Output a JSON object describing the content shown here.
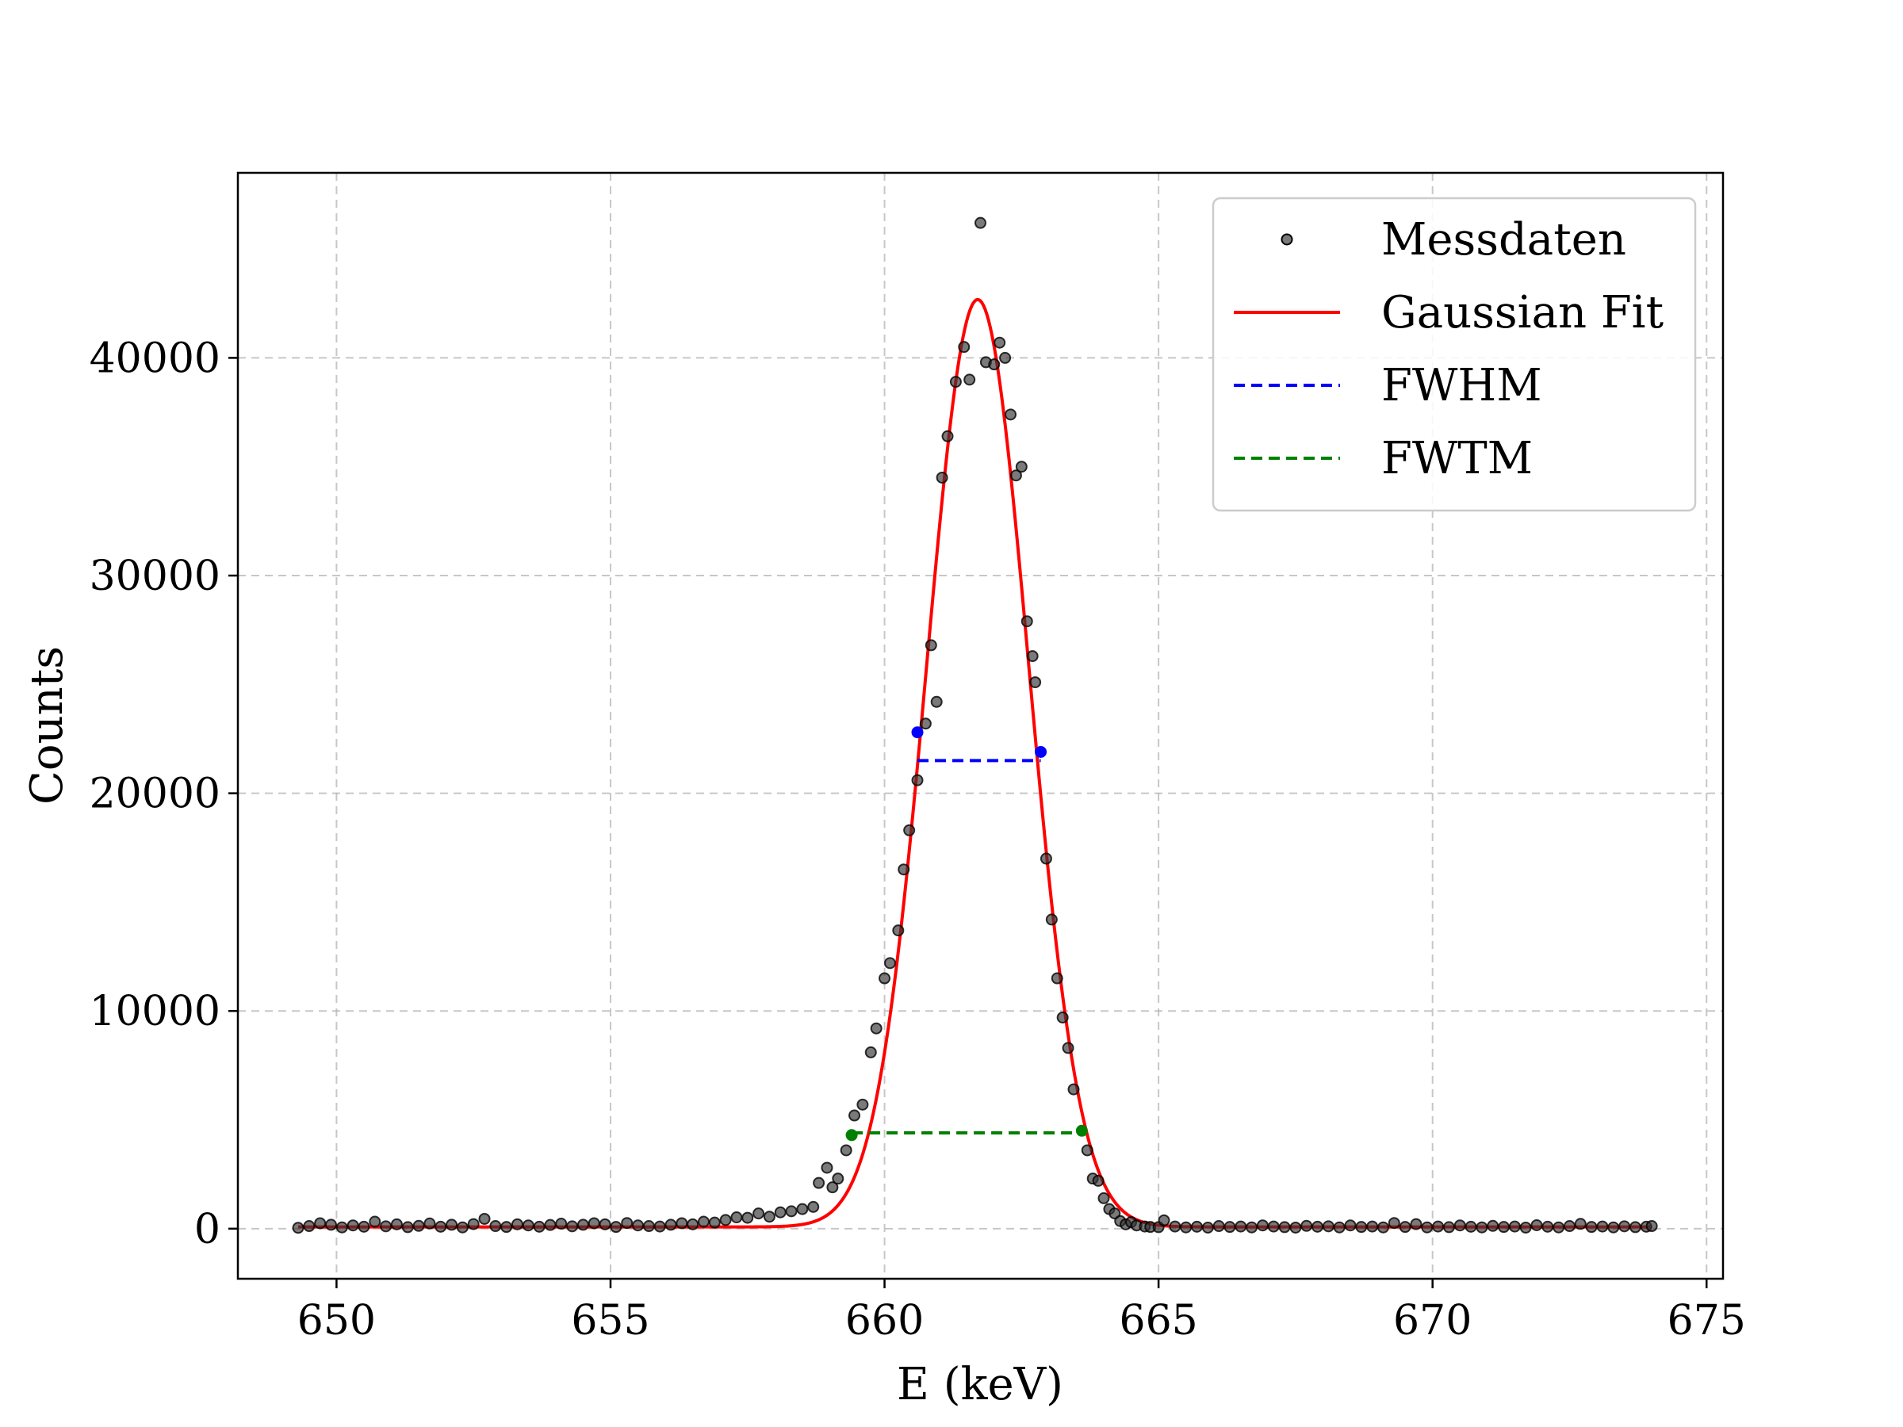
{
  "chart_data": {
    "type": "scatter",
    "title": "",
    "xlabel": "E (keV)",
    "ylabel": "Counts",
    "xlim": [
      648.2,
      675.3
    ],
    "ylim": [
      -2300,
      48500
    ],
    "xticks": [
      650,
      655,
      660,
      665,
      670,
      675
    ],
    "yticks": [
      0,
      10000,
      20000,
      30000,
      40000
    ],
    "grid": true,
    "legend_position": "top-right",
    "legend": [
      {
        "label": "Messdaten",
        "kind": "marker",
        "color": "#000000"
      },
      {
        "label": "Gaussian Fit",
        "kind": "solid",
        "color": "#ff0000"
      },
      {
        "label": "FWHM",
        "kind": "dashed",
        "color": "#0000ff"
      },
      {
        "label": "FWTM",
        "kind": "dashed",
        "color": "#008000"
      }
    ],
    "series": [
      {
        "name": "Messdaten",
        "color": "#000000",
        "points": [
          [
            649.3,
            40
          ],
          [
            649.5,
            120
          ],
          [
            649.7,
            250
          ],
          [
            649.9,
            180
          ],
          [
            650.1,
            60
          ],
          [
            650.3,
            150
          ],
          [
            650.5,
            90
          ],
          [
            650.7,
            320
          ],
          [
            650.9,
            110
          ],
          [
            651.1,
            200
          ],
          [
            651.3,
            70
          ],
          [
            651.5,
            130
          ],
          [
            651.7,
            240
          ],
          [
            651.9,
            90
          ],
          [
            652.1,
            180
          ],
          [
            652.3,
            60
          ],
          [
            652.5,
            210
          ],
          [
            652.7,
            450
          ],
          [
            652.9,
            120
          ],
          [
            653.1,
            80
          ],
          [
            653.3,
            200
          ],
          [
            653.5,
            150
          ],
          [
            653.7,
            90
          ],
          [
            653.9,
            170
          ],
          [
            654.1,
            230
          ],
          [
            654.3,
            110
          ],
          [
            654.5,
            180
          ],
          [
            654.7,
            250
          ],
          [
            654.9,
            200
          ],
          [
            655.1,
            80
          ],
          [
            655.3,
            260
          ],
          [
            655.5,
            150
          ],
          [
            655.7,
            120
          ],
          [
            655.9,
            100
          ],
          [
            656.1,
            180
          ],
          [
            656.3,
            250
          ],
          [
            656.5,
            200
          ],
          [
            656.7,
            320
          ],
          [
            656.9,
            280
          ],
          [
            657.1,
            400
          ],
          [
            657.3,
            520
          ],
          [
            657.5,
            500
          ],
          [
            657.7,
            700
          ],
          [
            657.9,
            550
          ],
          [
            658.1,
            750
          ],
          [
            658.3,
            800
          ],
          [
            658.5,
            900
          ],
          [
            658.7,
            1000
          ],
          [
            658.8,
            2100
          ],
          [
            658.95,
            2800
          ],
          [
            659.05,
            1900
          ],
          [
            659.15,
            2300
          ],
          [
            659.3,
            3600
          ],
          [
            659.45,
            5200
          ],
          [
            659.6,
            5700
          ],
          [
            659.75,
            8100
          ],
          [
            659.85,
            9200
          ],
          [
            660.0,
            11500
          ],
          [
            660.1,
            12200
          ],
          [
            660.25,
            13700
          ],
          [
            660.35,
            16500
          ],
          [
            660.45,
            18300
          ],
          [
            660.6,
            20600
          ],
          [
            660.75,
            23200
          ],
          [
            660.85,
            26800
          ],
          [
            660.95,
            24200
          ],
          [
            661.05,
            34500
          ],
          [
            661.15,
            36400
          ],
          [
            661.3,
            38900
          ],
          [
            661.45,
            40500
          ],
          [
            661.55,
            39000
          ],
          [
            661.75,
            46200
          ],
          [
            661.85,
            39800
          ],
          [
            662.0,
            39700
          ],
          [
            662.1,
            40700
          ],
          [
            662.2,
            40000
          ],
          [
            662.3,
            37400
          ],
          [
            662.4,
            34600
          ],
          [
            662.5,
            35000
          ],
          [
            662.6,
            27900
          ],
          [
            662.7,
            26300
          ],
          [
            662.75,
            25100
          ],
          [
            662.95,
            17000
          ],
          [
            663.05,
            14200
          ],
          [
            663.15,
            11500
          ],
          [
            663.25,
            9700
          ],
          [
            663.35,
            8300
          ],
          [
            663.45,
            6400
          ],
          [
            663.7,
            3600
          ],
          [
            663.8,
            2300
          ],
          [
            663.9,
            2200
          ],
          [
            664.0,
            1400
          ],
          [
            664.1,
            900
          ],
          [
            664.2,
            700
          ],
          [
            664.3,
            350
          ],
          [
            664.4,
            200
          ],
          [
            664.5,
            300
          ],
          [
            664.6,
            150
          ],
          [
            664.75,
            100
          ],
          [
            664.85,
            80
          ],
          [
            665.0,
            70
          ],
          [
            665.1,
            380
          ],
          [
            665.3,
            100
          ],
          [
            665.5,
            60
          ],
          [
            665.7,
            90
          ],
          [
            665.9,
            50
          ],
          [
            666.1,
            120
          ],
          [
            666.3,
            80
          ],
          [
            666.5,
            100
          ],
          [
            666.7,
            60
          ],
          [
            666.9,
            150
          ],
          [
            667.1,
            100
          ],
          [
            667.3,
            70
          ],
          [
            667.5,
            50
          ],
          [
            667.7,
            130
          ],
          [
            667.9,
            90
          ],
          [
            668.1,
            110
          ],
          [
            668.3,
            60
          ],
          [
            668.5,
            150
          ],
          [
            668.7,
            80
          ],
          [
            668.9,
            100
          ],
          [
            669.1,
            60
          ],
          [
            669.3,
            260
          ],
          [
            669.5,
            80
          ],
          [
            669.7,
            210
          ],
          [
            669.9,
            60
          ],
          [
            670.1,
            100
          ],
          [
            670.3,
            70
          ],
          [
            670.5,
            150
          ],
          [
            670.7,
            90
          ],
          [
            670.9,
            60
          ],
          [
            671.1,
            130
          ],
          [
            671.3,
            80
          ],
          [
            671.5,
            100
          ],
          [
            671.7,
            50
          ],
          [
            671.9,
            160
          ],
          [
            672.1,
            90
          ],
          [
            672.3,
            60
          ],
          [
            672.5,
            120
          ],
          [
            672.7,
            220
          ],
          [
            672.9,
            80
          ],
          [
            673.1,
            100
          ],
          [
            673.3,
            60
          ],
          [
            673.5,
            110
          ],
          [
            673.7,
            70
          ],
          [
            673.9,
            90
          ],
          [
            674.0,
            120
          ]
        ]
      },
      {
        "name": "Gaussian Fit",
        "color": "#ff0000",
        "amplitude": 42600,
        "mean": 661.7,
        "sigma": 0.93,
        "offset": 80,
        "x_range": [
          649.3,
          674.0
        ]
      },
      {
        "name": "FWHM",
        "color": "#0000ff",
        "x": [
          660.6,
          662.85
        ],
        "y": 21500,
        "endpoints": [
          [
            660.6,
            22800
          ],
          [
            662.85,
            21900
          ]
        ]
      },
      {
        "name": "FWTM",
        "color": "#008000",
        "x": [
          659.4,
          663.6
        ],
        "y": 4400,
        "endpoints": [
          [
            659.4,
            4300
          ],
          [
            663.6,
            4500
          ]
        ]
      }
    ]
  }
}
